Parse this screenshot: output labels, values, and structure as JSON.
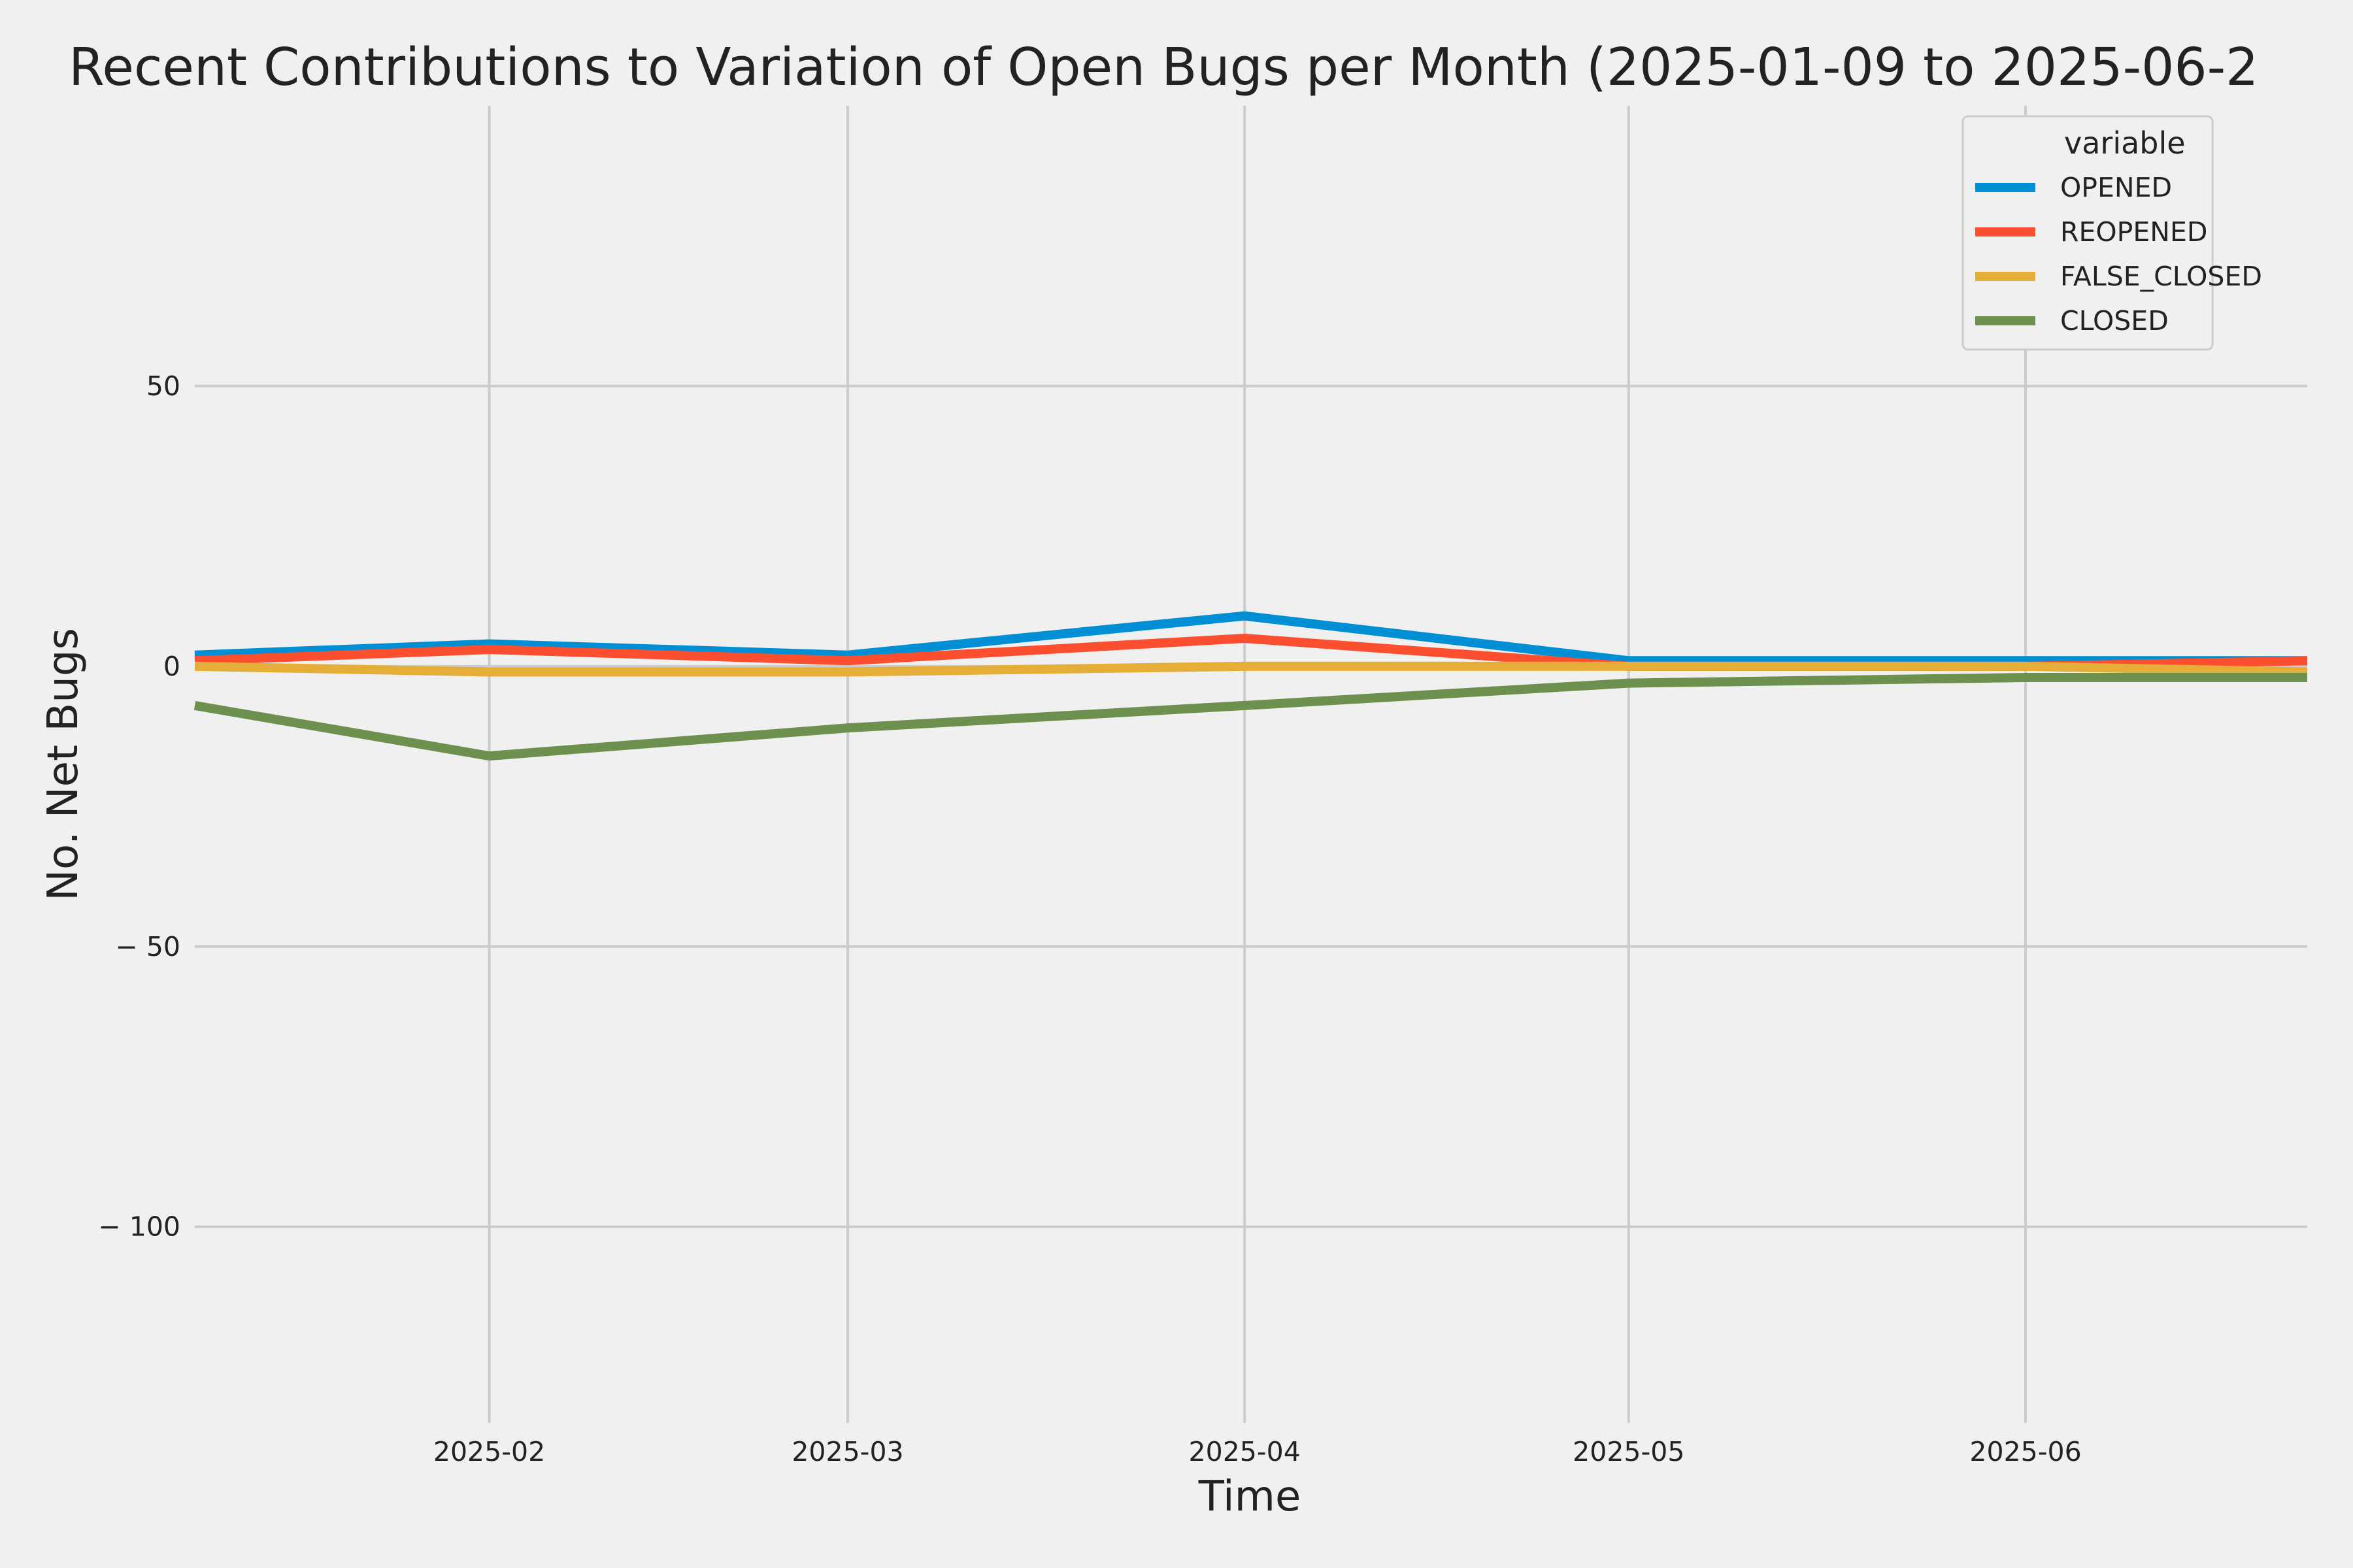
{
  "chart_data": {
    "type": "line",
    "title": "Recent Contributions to Variation of Open Bugs per Month (2025-01-09 to 2025-06-2",
    "xlabel": "Time",
    "ylabel": "No. Net Bugs",
    "x": [
      "2025-01-09",
      "2025-02-01",
      "2025-03-01",
      "2025-04-01",
      "2025-05-01",
      "2025-06-01",
      "2025-06-23"
    ],
    "x_ticks": [
      "2025-02",
      "2025-03",
      "2025-04",
      "2025-05",
      "2025-06"
    ],
    "xlim": [
      "2025-01-09",
      "2025-06-23"
    ],
    "y_ticks": [
      50,
      0,
      -50,
      -100
    ],
    "y_tick_labels": [
      "50",
      "0",
      "− 50",
      "− 100"
    ],
    "ylim": [
      -135,
      100
    ],
    "grid": true,
    "legend": {
      "title": "variable",
      "placement": "top-right"
    },
    "series": [
      {
        "name": "OPENED",
        "color": "#008fd5",
        "values": [
          2,
          4,
          2,
          9,
          1,
          1,
          1
        ]
      },
      {
        "name": "REOPENED",
        "color": "#fc4f30",
        "values": [
          1,
          3,
          1,
          5,
          0,
          0,
          1
        ]
      },
      {
        "name": "FALSE_CLOSED",
        "color": "#e5ae38",
        "values": [
          0,
          -1,
          -1,
          0,
          0,
          0,
          -1
        ]
      },
      {
        "name": "CLOSED",
        "color": "#6d904f",
        "values": [
          -7,
          -16,
          -11,
          -7,
          -3,
          -2,
          -2
        ]
      }
    ]
  }
}
